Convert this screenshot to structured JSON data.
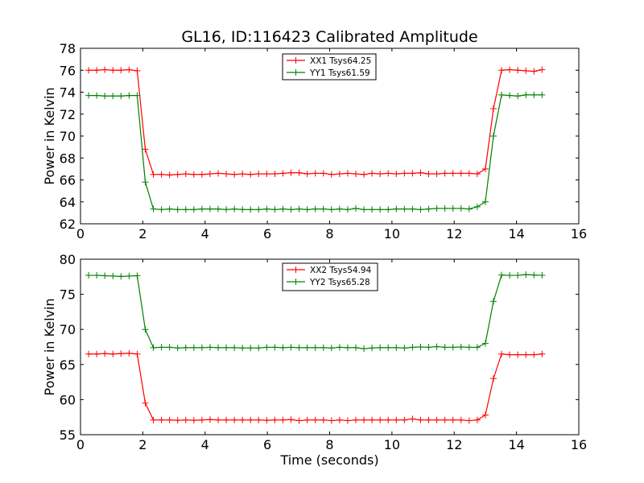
{
  "chart_data": [
    {
      "type": "line",
      "title": "GL16, ID:116423 Calibrated Amplitude",
      "xlabel": "",
      "ylabel": "Power in Kelvin",
      "xlim": [
        0,
        16
      ],
      "ylim": [
        62,
        78
      ],
      "xticks": [
        "0",
        "2",
        "4",
        "6",
        "8",
        "10",
        "12",
        "14",
        "16"
      ],
      "yticks": [
        "62",
        "64",
        "66",
        "68",
        "70",
        "72",
        "74",
        "76",
        "78"
      ],
      "legend_position": "top-center",
      "x": [
        0.26,
        0.52,
        0.78,
        1.04,
        1.3,
        1.56,
        1.82,
        2.08,
        2.34,
        2.6,
        2.86,
        3.12,
        3.38,
        3.64,
        3.9,
        4.16,
        4.42,
        4.68,
        4.94,
        5.2,
        5.46,
        5.72,
        5.98,
        6.24,
        6.5,
        6.76,
        7.02,
        7.28,
        7.54,
        7.8,
        8.06,
        8.32,
        8.58,
        8.84,
        9.1,
        9.36,
        9.62,
        9.88,
        10.14,
        10.4,
        10.66,
        10.92,
        11.18,
        11.44,
        11.7,
        11.96,
        12.22,
        12.48,
        12.74,
        13.0,
        13.26,
        13.52,
        13.78,
        14.04,
        14.3,
        14.56,
        14.82
      ],
      "series": [
        {
          "name": "XX1 Tsys64.25",
          "color": "#ff0000",
          "values": [
            76.0,
            76.0,
            76.05,
            76.0,
            76.0,
            76.05,
            75.95,
            68.8,
            66.5,
            66.5,
            66.45,
            66.5,
            66.55,
            66.5,
            66.5,
            66.55,
            66.6,
            66.55,
            66.5,
            66.55,
            66.5,
            66.55,
            66.55,
            66.55,
            66.6,
            66.65,
            66.65,
            66.55,
            66.6,
            66.6,
            66.5,
            66.55,
            66.6,
            66.55,
            66.5,
            66.6,
            66.55,
            66.6,
            66.55,
            66.6,
            66.6,
            66.65,
            66.55,
            66.55,
            66.6,
            66.6,
            66.6,
            66.6,
            66.55,
            67.0,
            72.5,
            76.0,
            76.05,
            76.0,
            75.95,
            75.9,
            76.05
          ]
        },
        {
          "name": "YY1 Tsys61.59",
          "color": "#008000",
          "values": [
            73.7,
            73.7,
            73.65,
            73.65,
            73.65,
            73.7,
            73.7,
            65.8,
            63.35,
            63.3,
            63.35,
            63.3,
            63.3,
            63.3,
            63.35,
            63.35,
            63.35,
            63.3,
            63.35,
            63.3,
            63.3,
            63.3,
            63.35,
            63.3,
            63.35,
            63.3,
            63.35,
            63.3,
            63.35,
            63.35,
            63.3,
            63.35,
            63.3,
            63.4,
            63.3,
            63.3,
            63.3,
            63.3,
            63.35,
            63.35,
            63.35,
            63.3,
            63.35,
            63.4,
            63.4,
            63.4,
            63.4,
            63.35,
            63.55,
            64.0,
            70.0,
            73.75,
            73.7,
            73.65,
            73.75,
            73.75,
            73.75
          ]
        }
      ]
    },
    {
      "type": "line",
      "title": "",
      "xlabel": "Time (seconds)",
      "ylabel": "Power in Kelvin",
      "xlim": [
        0,
        16
      ],
      "ylim": [
        55,
        80
      ],
      "xticks": [
        "0",
        "2",
        "4",
        "6",
        "8",
        "10",
        "12",
        "14",
        "16"
      ],
      "yticks": [
        "55",
        "60",
        "65",
        "70",
        "75",
        "80"
      ],
      "legend_position": "top-center",
      "x": [
        0.26,
        0.52,
        0.78,
        1.04,
        1.3,
        1.56,
        1.82,
        2.08,
        2.34,
        2.6,
        2.86,
        3.12,
        3.38,
        3.64,
        3.9,
        4.16,
        4.42,
        4.68,
        4.94,
        5.2,
        5.46,
        5.72,
        5.98,
        6.24,
        6.5,
        6.76,
        7.02,
        7.28,
        7.54,
        7.8,
        8.06,
        8.32,
        8.58,
        8.84,
        9.1,
        9.36,
        9.62,
        9.88,
        10.14,
        10.4,
        10.66,
        10.92,
        11.18,
        11.44,
        11.7,
        11.96,
        12.22,
        12.48,
        12.74,
        13.0,
        13.26,
        13.52,
        13.78,
        14.04,
        14.3,
        14.56,
        14.82
      ],
      "series": [
        {
          "name": "XX2 Tsys54.94",
          "color": "#ff0000",
          "values": [
            66.5,
            66.5,
            66.55,
            66.5,
            66.55,
            66.6,
            66.5,
            59.5,
            57.1,
            57.1,
            57.1,
            57.05,
            57.1,
            57.05,
            57.1,
            57.15,
            57.1,
            57.1,
            57.1,
            57.1,
            57.1,
            57.1,
            57.05,
            57.1,
            57.1,
            57.15,
            57.0,
            57.1,
            57.1,
            57.1,
            57.0,
            57.1,
            57.0,
            57.1,
            57.1,
            57.1,
            57.1,
            57.1,
            57.1,
            57.1,
            57.25,
            57.1,
            57.1,
            57.1,
            57.1,
            57.1,
            57.1,
            57.0,
            57.1,
            57.8,
            63.0,
            66.5,
            66.4,
            66.4,
            66.4,
            66.4,
            66.5
          ]
        },
        {
          "name": "YY2 Tsys65.28",
          "color": "#008000",
          "values": [
            77.7,
            77.7,
            77.65,
            77.6,
            77.55,
            77.6,
            77.65,
            70.0,
            67.4,
            67.45,
            67.45,
            67.35,
            67.4,
            67.4,
            67.4,
            67.45,
            67.4,
            67.4,
            67.4,
            67.35,
            67.35,
            67.35,
            67.45,
            67.45,
            67.4,
            67.45,
            67.4,
            67.4,
            67.4,
            67.4,
            67.35,
            67.45,
            67.4,
            67.4,
            67.25,
            67.35,
            67.4,
            67.4,
            67.4,
            67.35,
            67.45,
            67.5,
            67.45,
            67.55,
            67.45,
            67.45,
            67.5,
            67.45,
            67.45,
            68.0,
            74.0,
            77.75,
            77.7,
            77.7,
            77.8,
            77.75,
            77.7
          ]
        }
      ]
    }
  ]
}
